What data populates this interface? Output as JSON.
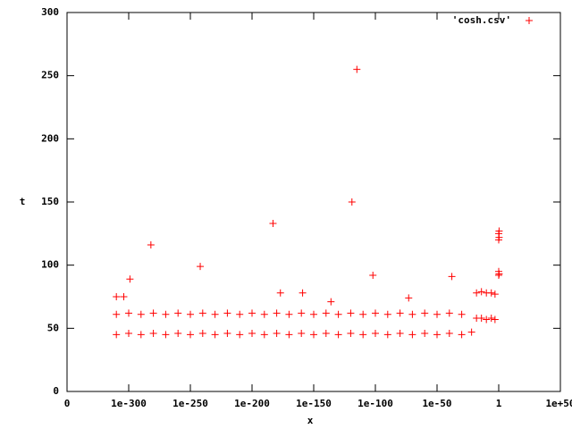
{
  "chart_data": {
    "type": "scatter",
    "x_label": "x",
    "y_label": "t",
    "log_x": true,
    "xlim": [
      0,
      1e+50
    ],
    "xticks": [
      0,
      {
        "value": 1e-300,
        "label": "1e-300"
      },
      {
        "value": 1e-250,
        "label": "1e-250"
      },
      {
        "value": 1e-200,
        "label": "1e-200"
      },
      {
        "value": 1e-150,
        "label": "1e-150"
      },
      {
        "value": 1e-100,
        "label": "1e-100"
      },
      {
        "value": 1e-50,
        "label": "1e-50"
      },
      1,
      {
        "value": 1e+50,
        "label": "1e+50"
      }
    ],
    "ylim": [
      0,
      300
    ],
    "yticks": [
      0,
      50,
      100,
      150,
      200,
      250,
      300
    ],
    "legend": "top-right",
    "series": [
      {
        "name": "'cosh.csv'",
        "color": "#ff0000",
        "x": [
          1e-310,
          1e-310,
          1e-300,
          1e-300,
          1e-290,
          1e-290,
          1e-280,
          1e-280,
          1e-270,
          1e-270,
          1e-260,
          1e-260,
          1e-250,
          1e-250,
          1e-240,
          1e-240,
          1e-230,
          1e-230,
          1e-220,
          1e-220,
          1e-210,
          1e-210,
          1e-200,
          1e-200,
          1e-190,
          1e-190,
          1e-180,
          1e-180,
          1e-170,
          1e-170,
          1e-160,
          1e-160,
          1e-150,
          1e-150,
          1e-140,
          1e-140,
          1e-130,
          1e-130,
          1e-120,
          1e-120,
          1e-110,
          1e-110,
          1e-100,
          1e-100,
          1e-90,
          1e-90,
          1e-80,
          1e-80,
          1e-70,
          1e-70,
          1e-60,
          1e-60,
          1e-50,
          1e-50,
          1e-40,
          1e-40,
          1e-30,
          1e-30,
          1e-22,
          1e-18,
          1e-18,
          1e-14,
          1e-14,
          1e-10,
          1e-10,
          1e-06,
          1e-06,
          0.001,
          0.001,
          1,
          1,
          1,
          1,
          2,
          2,
          2,
          1e-115,
          1e-119,
          1e-183,
          1e-282,
          1e-242,
          1e-299,
          1e-102,
          1e-38,
          1e-177,
          1e-159,
          1e-136,
          1e-73,
          1e-310,
          1e-304
        ],
        "values": [
          61,
          45,
          62,
          46,
          61,
          45,
          62,
          46,
          61,
          45,
          62,
          46,
          61,
          45,
          62,
          46,
          61,
          45,
          62,
          46,
          61,
          45,
          62,
          46,
          61,
          45,
          62,
          46,
          61,
          45,
          62,
          46,
          61,
          45,
          62,
          46,
          61,
          45,
          62,
          46,
          61,
          45,
          62,
          46,
          61,
          45,
          62,
          46,
          61,
          45,
          62,
          46,
          61,
          45,
          62,
          46,
          61,
          45,
          47,
          58,
          78,
          58,
          79,
          57,
          78,
          58,
          78,
          57,
          77,
          92,
          95,
          120,
          125,
          122,
          127,
          93,
          255,
          150,
          133,
          116,
          99,
          89,
          92,
          91,
          78,
          78,
          71,
          74,
          75,
          75
        ]
      }
    ]
  }
}
